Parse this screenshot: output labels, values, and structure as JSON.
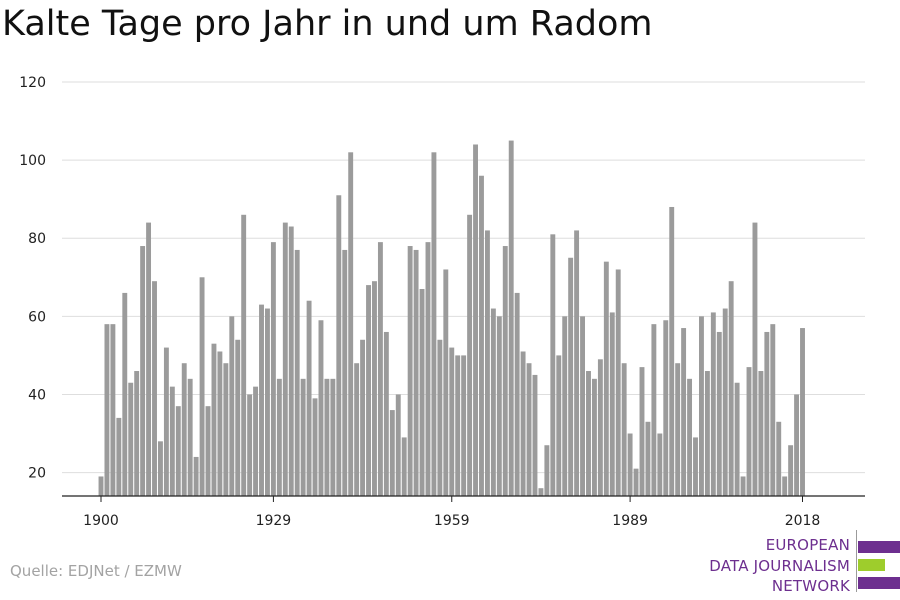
{
  "title": "Kalte Tage pro Jahr in und um Radom",
  "source": "Quelle: EDJNet / EZMW",
  "logo": {
    "lines": [
      "EUROPEAN",
      "DATA JOURNALISM",
      "NETWORK"
    ],
    "colors": [
      "#6d2f8f",
      "#9ecd2c",
      "#6d2f8f"
    ]
  },
  "chart_data": {
    "type": "bar",
    "x": [
      1900,
      1901,
      1902,
      1903,
      1904,
      1905,
      1906,
      1907,
      1908,
      1909,
      1910,
      1911,
      1912,
      1913,
      1914,
      1915,
      1916,
      1917,
      1918,
      1919,
      1920,
      1921,
      1922,
      1923,
      1924,
      1925,
      1926,
      1927,
      1928,
      1929,
      1930,
      1931,
      1932,
      1933,
      1934,
      1935,
      1936,
      1937,
      1938,
      1939,
      1940,
      1941,
      1942,
      1943,
      1944,
      1945,
      1946,
      1947,
      1948,
      1949,
      1950,
      1951,
      1952,
      1953,
      1954,
      1955,
      1956,
      1957,
      1958,
      1959,
      1960,
      1961,
      1962,
      1963,
      1964,
      1965,
      1966,
      1967,
      1968,
      1969,
      1970,
      1971,
      1972,
      1973,
      1974,
      1975,
      1976,
      1977,
      1978,
      1979,
      1980,
      1981,
      1982,
      1983,
      1984,
      1985,
      1986,
      1987,
      1988,
      1989,
      1990,
      1991,
      1992,
      1993,
      1994,
      1995,
      1996,
      1997,
      1998,
      1999,
      2000,
      2001,
      2002,
      2003,
      2004,
      2005,
      2006,
      2007,
      2008,
      2009,
      2010,
      2011,
      2012,
      2013,
      2014,
      2015,
      2016,
      2017,
      2018
    ],
    "values": [
      19,
      58,
      58,
      34,
      66,
      43,
      46,
      78,
      84,
      69,
      28,
      52,
      42,
      37,
      48,
      44,
      24,
      70,
      37,
      53,
      51,
      48,
      60,
      54,
      86,
      40,
      42,
      63,
      62,
      79,
      44,
      84,
      83,
      77,
      44,
      64,
      39,
      59,
      44,
      44,
      91,
      77,
      102,
      48,
      54,
      68,
      69,
      79,
      56,
      36,
      40,
      29,
      78,
      77,
      67,
      79,
      102,
      54,
      72,
      52,
      50,
      50,
      86,
      104,
      96,
      82,
      62,
      60,
      78,
      105,
      66,
      51,
      48,
      45,
      16,
      27,
      81,
      50,
      60,
      75,
      82,
      60,
      46,
      44,
      49,
      74,
      61,
      72,
      48,
      30,
      21,
      47,
      33,
      58,
      30,
      59,
      88,
      48,
      57,
      44,
      29,
      60,
      46,
      61,
      56,
      62,
      69,
      43,
      19,
      47,
      84,
      46,
      56,
      58,
      33,
      19,
      27,
      40,
      57
    ],
    "bar_color": "#9b9b9b",
    "xticks": [
      1900,
      1929,
      1959,
      1989,
      2018
    ],
    "yticks": [
      20,
      40,
      60,
      80,
      100,
      120
    ],
    "ylim": [
      14,
      120
    ],
    "xlim": [
      1900,
      2018
    ],
    "grid": true,
    "xlabel": "",
    "ylabel": ""
  }
}
